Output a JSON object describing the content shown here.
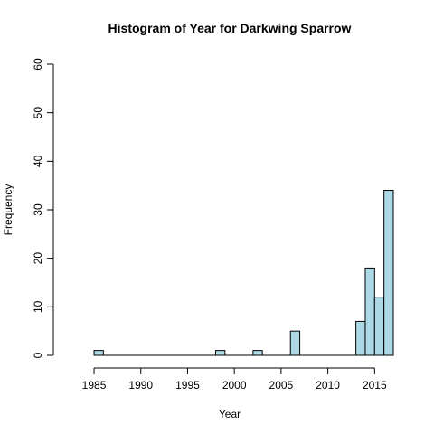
{
  "chart_data": {
    "type": "bar",
    "title": "Histogram of Year for Darkwing Sparrow",
    "xlabel": "Year",
    "ylabel": "Frequency",
    "bin_width": 1,
    "xlim": [
      1982,
      2017
    ],
    "ylim": [
      0,
      60
    ],
    "x_ticks": [
      1985,
      1990,
      1995,
      2000,
      2005,
      2010,
      2015
    ],
    "y_ticks": [
      0,
      10,
      20,
      30,
      40,
      50,
      60
    ],
    "bins": [
      {
        "start": 1985,
        "end": 1986,
        "count": 1
      },
      {
        "start": 1998,
        "end": 1999,
        "count": 1
      },
      {
        "start": 2002,
        "end": 2003,
        "count": 1
      },
      {
        "start": 2006,
        "end": 2007,
        "count": 5
      },
      {
        "start": 2013,
        "end": 2014,
        "count": 7
      },
      {
        "start": 2014,
        "end": 2015,
        "count": 18
      },
      {
        "start": 2015,
        "end": 2016,
        "count": 12
      },
      {
        "start": 2016,
        "end": 2017,
        "count": 34
      }
    ],
    "grid": false,
    "legend": "none",
    "bar_color": "#add8e6",
    "bar_outline": "#000000"
  }
}
